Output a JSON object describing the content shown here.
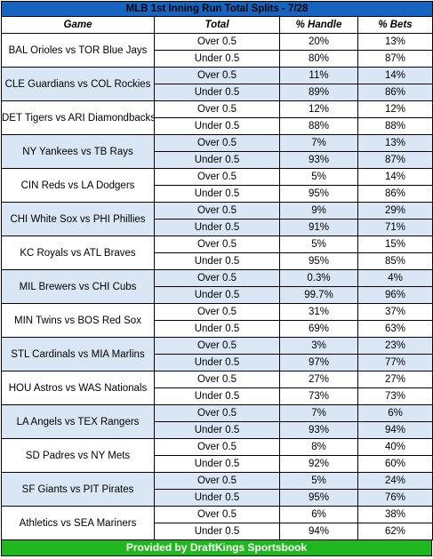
{
  "title": "MLB 1st Inning Run Total Splits - 7/28",
  "headers": {
    "game": "Game",
    "total": "Total",
    "handle": "% Handle",
    "bets": "% Bets"
  },
  "games": [
    {
      "name": "BAL Orioles vs TOR Blue Jays",
      "rows": [
        {
          "total": "Over 0.5",
          "handle": "20%",
          "bets": "13%"
        },
        {
          "total": "Under 0.5",
          "handle": "80%",
          "bets": "87%"
        }
      ]
    },
    {
      "name": "CLE Guardians vs COL Rockies",
      "rows": [
        {
          "total": "Over 0.5",
          "handle": "11%",
          "bets": "14%"
        },
        {
          "total": "Under 0.5",
          "handle": "89%",
          "bets": "86%"
        }
      ]
    },
    {
      "name": "DET Tigers vs ARI Diamondbacks",
      "rows": [
        {
          "total": "Over 0.5",
          "handle": "12%",
          "bets": "12%"
        },
        {
          "total": "Under 0.5",
          "handle": "88%",
          "bets": "88%"
        }
      ]
    },
    {
      "name": "NY Yankees vs TB Rays",
      "rows": [
        {
          "total": "Over 0.5",
          "handle": "7%",
          "bets": "13%"
        },
        {
          "total": "Under 0.5",
          "handle": "93%",
          "bets": "87%"
        }
      ]
    },
    {
      "name": "CIN Reds vs LA Dodgers",
      "rows": [
        {
          "total": "Over 0.5",
          "handle": "5%",
          "bets": "14%"
        },
        {
          "total": "Under 0.5",
          "handle": "95%",
          "bets": "86%"
        }
      ]
    },
    {
      "name": "CHI White Sox vs PHI Phillies",
      "rows": [
        {
          "total": "Over 0.5",
          "handle": "9%",
          "bets": "29%"
        },
        {
          "total": "Under 0.5",
          "handle": "91%",
          "bets": "71%"
        }
      ]
    },
    {
      "name": "KC Royals vs ATL Braves",
      "rows": [
        {
          "total": "Over 0.5",
          "handle": "5%",
          "bets": "15%"
        },
        {
          "total": "Under 0.5",
          "handle": "95%",
          "bets": "85%"
        }
      ]
    },
    {
      "name": "MIL Brewers vs CHI Cubs",
      "rows": [
        {
          "total": "Over 0.5",
          "handle": "0.3%",
          "bets": "4%"
        },
        {
          "total": "Under 0.5",
          "handle": "99.7%",
          "bets": "96%"
        }
      ]
    },
    {
      "name": "MIN Twins vs BOS Red Sox",
      "rows": [
        {
          "total": "Over 0.5",
          "handle": "31%",
          "bets": "37%"
        },
        {
          "total": "Under 0.5",
          "handle": "69%",
          "bets": "63%"
        }
      ]
    },
    {
      "name": "STL Cardinals vs MIA Marlins",
      "rows": [
        {
          "total": "Over 0.5",
          "handle": "3%",
          "bets": "23%"
        },
        {
          "total": "Under 0.5",
          "handle": "97%",
          "bets": "77%"
        }
      ]
    },
    {
      "name": "HOU Astros vs WAS Nationals",
      "rows": [
        {
          "total": "Over 0.5",
          "handle": "27%",
          "bets": "27%"
        },
        {
          "total": "Under 0.5",
          "handle": "73%",
          "bets": "73%"
        }
      ]
    },
    {
      "name": "LA Angels vs TEX Rangers",
      "rows": [
        {
          "total": "Over 0.5",
          "handle": "7%",
          "bets": "6%"
        },
        {
          "total": "Under 0.5",
          "handle": "93%",
          "bets": "94%"
        }
      ]
    },
    {
      "name": "SD Padres vs NY Mets",
      "rows": [
        {
          "total": "Over 0.5",
          "handle": "8%",
          "bets": "40%"
        },
        {
          "total": "Under 0.5",
          "handle": "92%",
          "bets": "60%"
        }
      ]
    },
    {
      "name": "SF Giants vs PIT Pirates",
      "rows": [
        {
          "total": "Over 0.5",
          "handle": "5%",
          "bets": "24%"
        },
        {
          "total": "Under 0.5",
          "handle": "95%",
          "bets": "76%"
        }
      ]
    },
    {
      "name": "Athletics vs SEA Mariners",
      "rows": [
        {
          "total": "Over 0.5",
          "handle": "6%",
          "bets": "38%"
        },
        {
          "total": "Under 0.5",
          "handle": "94%",
          "bets": "62%"
        }
      ]
    }
  ],
  "footer": "Provided by DraftKings Sportsbook",
  "colors": {
    "title_bg": "#1565c0",
    "shade_bg": "#d9e6f5",
    "footer_bg": "#21b81f"
  }
}
